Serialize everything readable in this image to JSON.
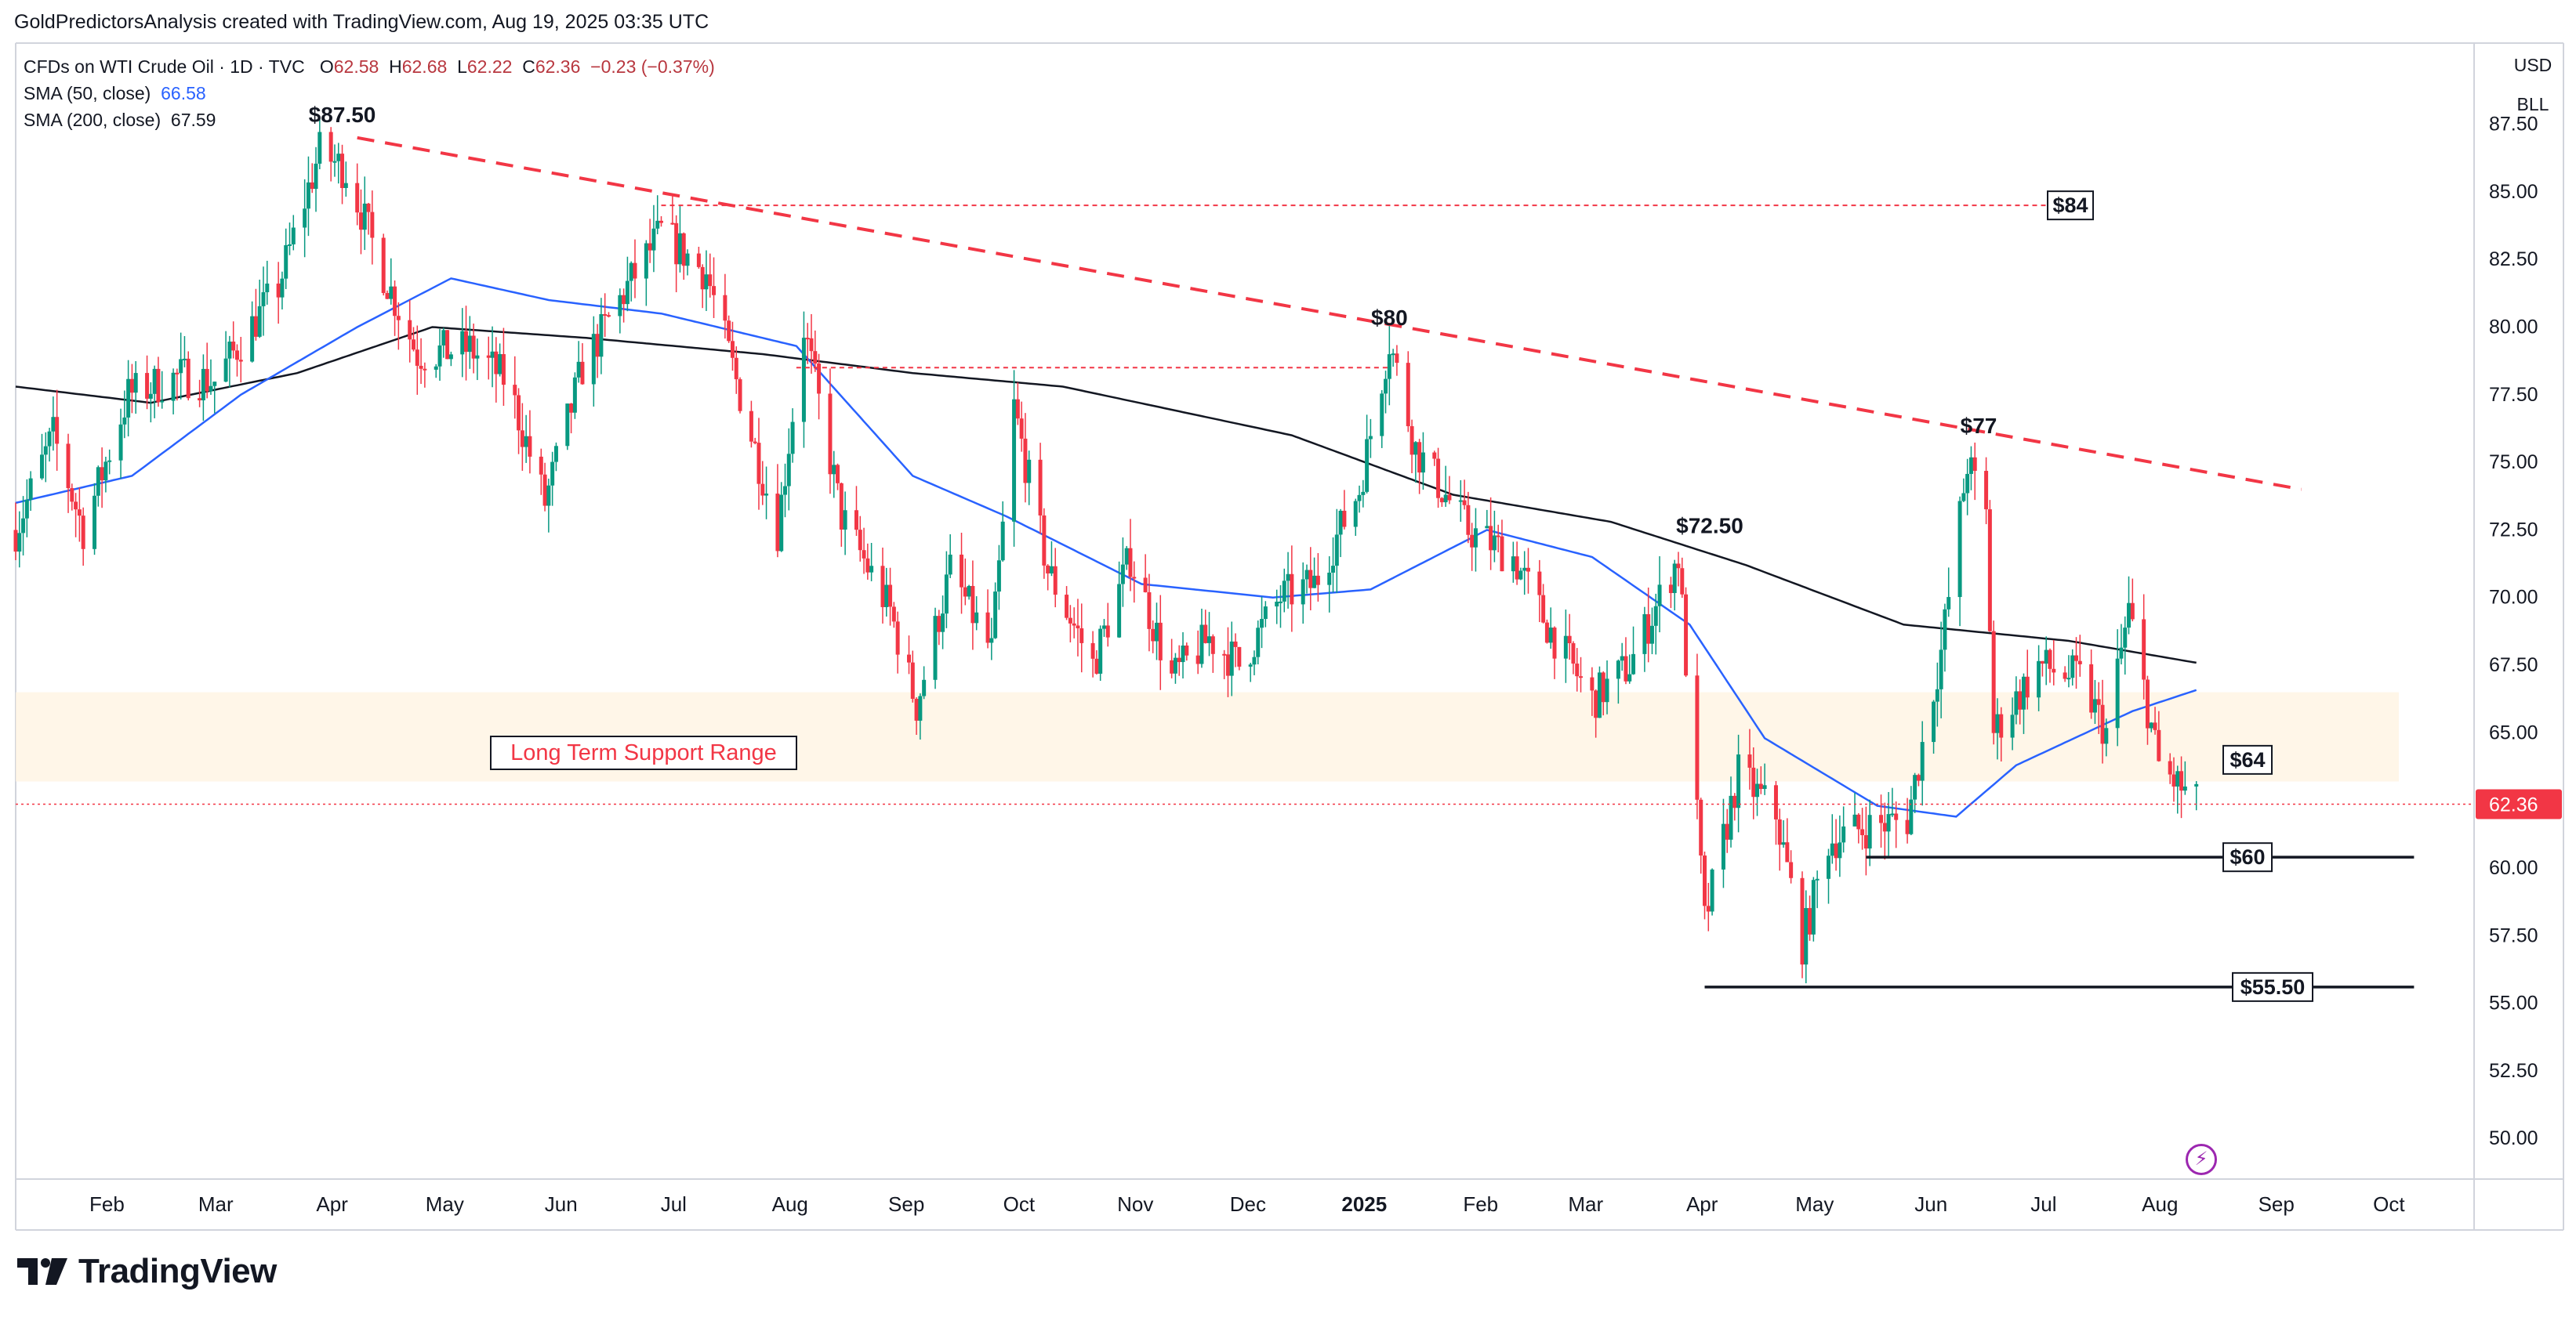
{
  "credit": "GoldPredictorsAnalysis created with TradingView.com, Aug 19, 2025 03:35 UTC",
  "legend": {
    "symbol": "CFDs on WTI Crude Oil · 1D · TVC",
    "o_label": "O",
    "o": "62.58",
    "h_label": "H",
    "h": "62.68",
    "l_label": "L",
    "l": "62.22",
    "c_label": "C",
    "c": "62.36",
    "change": "−0.23 (−0.37%)",
    "sma50_label": "SMA (50, close)",
    "sma50_value": "66.58",
    "sma200_label": "SMA (200, close)",
    "sma200_value": "67.59"
  },
  "currency": "USD",
  "unit": "BLL",
  "brand": "TradingView",
  "colors": {
    "up": "#089981",
    "down": "#f23645",
    "sma50": "#2962ff",
    "sma200": "#131722",
    "trend": "#f23645",
    "price_tag": "#f23645",
    "support_band": "#fff3e0"
  },
  "chart_data": {
    "type": "candlestick",
    "instrument": "CFDs on WTI Crude Oil",
    "interval": "1D",
    "y_ticks": [
      "87.50",
      "85.00",
      "82.50",
      "80.00",
      "77.50",
      "75.00",
      "72.50",
      "70.00",
      "67.50",
      "65.00",
      "62.50",
      "60.00",
      "57.50",
      "55.00",
      "52.50",
      "50.00"
    ],
    "ylim": [
      48.5,
      90.5
    ],
    "x_ticks": [
      "Feb",
      "Mar",
      "Apr",
      "May",
      "Jun",
      "Jul",
      "Aug",
      "Sep",
      "Oct",
      "Nov",
      "Dec",
      "2025",
      "Feb",
      "Mar",
      "Apr",
      "May",
      "Jun",
      "Jul",
      "Aug",
      "Sep",
      "Oct"
    ],
    "x_range": [
      "2024-01-15",
      "2025-10-31"
    ],
    "last_price": "62.36",
    "sma50_last": 66.58,
    "sma200_last": 67.59,
    "support_range": {
      "label": "Long Term Support Range",
      "low": 63.2,
      "high": 66.5
    },
    "price_path": [
      [
        "2024-01-15",
        72.5
      ],
      [
        "2024-01-25",
        76.0
      ],
      [
        "2024-02-02",
        72.5
      ],
      [
        "2024-02-14",
        77.5
      ],
      [
        "2024-02-28",
        78.2
      ],
      [
        "2024-03-08",
        78.0
      ],
      [
        "2024-03-25",
        81.5
      ],
      [
        "2024-04-05",
        86.5
      ],
      [
        "2024-04-12",
        85.8
      ],
      [
        "2024-04-22",
        82.0
      ],
      [
        "2024-05-01",
        79.0
      ],
      [
        "2024-05-15",
        79.2
      ],
      [
        "2024-05-25",
        78.0
      ],
      [
        "2024-06-04",
        73.5
      ],
      [
        "2024-06-14",
        78.5
      ],
      [
        "2024-06-26",
        81.5
      ],
      [
        "2024-07-05",
        83.5
      ],
      [
        "2024-07-17",
        82.0
      ],
      [
        "2024-07-26",
        77.5
      ],
      [
        "2024-08-05",
        72.5
      ],
      [
        "2024-08-12",
        80.0
      ],
      [
        "2024-08-22",
        73.0
      ],
      [
        "2024-09-04",
        69.5
      ],
      [
        "2024-09-11",
        66.0
      ],
      [
        "2024-09-20",
        71.0
      ],
      [
        "2024-10-01",
        68.0
      ],
      [
        "2024-10-07",
        77.0
      ],
      [
        "2024-10-16",
        71.0
      ],
      [
        "2024-10-28",
        67.5
      ],
      [
        "2024-11-07",
        71.5
      ],
      [
        "2024-11-18",
        67.0
      ],
      [
        "2024-11-28",
        68.5
      ],
      [
        "2024-12-06",
        67.5
      ],
      [
        "2024-12-17",
        70.0
      ],
      [
        "2024-12-26",
        70.5
      ],
      [
        "2025-01-07",
        74.0
      ],
      [
        "2025-01-15",
        79.5
      ],
      [
        "2025-01-22",
        75.5
      ],
      [
        "2025-02-05",
        72.5
      ],
      [
        "2025-02-17",
        71.5
      ],
      [
        "2025-02-26",
        69.0
      ],
      [
        "2025-03-10",
        66.2
      ],
      [
        "2025-03-20",
        67.5
      ],
      [
        "2025-04-02",
        71.5
      ],
      [
        "2025-04-09",
        58.0
      ],
      [
        "2025-04-18",
        63.5
      ],
      [
        "2025-04-28",
        62.0
      ],
      [
        "2025-05-05",
        57.2
      ],
      [
        "2025-05-12",
        61.0
      ],
      [
        "2025-05-22",
        61.5
      ],
      [
        "2025-06-02",
        61.8
      ],
      [
        "2025-06-11",
        68.0
      ],
      [
        "2025-06-18",
        75.0
      ],
      [
        "2025-06-23",
        73.0
      ],
      [
        "2025-06-25",
        65.0
      ],
      [
        "2025-07-07",
        67.5
      ],
      [
        "2025-07-18",
        67.0
      ],
      [
        "2025-07-25",
        65.0
      ],
      [
        "2025-07-31",
        69.5
      ],
      [
        "2025-08-08",
        63.8
      ],
      [
        "2025-08-18",
        62.36
      ]
    ],
    "sma200_path": [
      [
        "2024-01-15",
        77.8
      ],
      [
        "2024-02-20",
        77.2
      ],
      [
        "2024-03-30",
        78.3
      ],
      [
        "2024-05-05",
        80.0
      ],
      [
        "2024-06-15",
        79.6
      ],
      [
        "2024-08-01",
        79.0
      ],
      [
        "2024-09-10",
        78.3
      ],
      [
        "2024-10-20",
        77.8
      ],
      [
        "2024-12-20",
        76.0
      ],
      [
        "2025-02-01",
        73.8
      ],
      [
        "2025-03-15",
        72.8
      ],
      [
        "2025-04-20",
        71.2
      ],
      [
        "2025-06-01",
        69.0
      ],
      [
        "2025-07-15",
        68.4
      ],
      [
        "2025-08-18",
        67.59
      ]
    ],
    "sma50_path": [
      [
        "2024-01-15",
        73.5
      ],
      [
        "2024-02-15",
        74.5
      ],
      [
        "2024-03-15",
        77.5
      ],
      [
        "2024-04-15",
        80.0
      ],
      [
        "2024-05-10",
        81.8
      ],
      [
        "2024-06-05",
        81.0
      ],
      [
        "2024-07-05",
        80.5
      ],
      [
        "2024-08-10",
        79.3
      ],
      [
        "2024-09-10",
        74.5
      ],
      [
        "2024-10-05",
        73.0
      ],
      [
        "2024-11-10",
        70.5
      ],
      [
        "2024-12-15",
        70.0
      ],
      [
        "2025-01-10",
        70.3
      ],
      [
        "2025-02-10",
        72.5
      ],
      [
        "2025-03-10",
        71.5
      ],
      [
        "2025-04-05",
        69.0
      ],
      [
        "2025-04-25",
        64.8
      ],
      [
        "2025-05-25",
        62.3
      ],
      [
        "2025-06-15",
        61.9
      ],
      [
        "2025-07-01",
        63.8
      ],
      [
        "2025-08-01",
        65.8
      ],
      [
        "2025-08-18",
        66.58
      ]
    ],
    "annotations": {
      "peak_1": {
        "label": "$87.50",
        "date": "2024-04-11",
        "value": 87.0
      },
      "peak_2": {
        "label": "$80",
        "date": "2025-01-15",
        "value": 79.5
      },
      "peak_3": {
        "label": "$72.50",
        "date": "2025-04-02",
        "value": 71.8
      },
      "peak_4": {
        "label": "$77",
        "date": "2025-06-21",
        "value": 75.5
      },
      "level_84": {
        "label": "$84",
        "value": 84.5,
        "from": "2024-07-05",
        "to": "2025-07-15"
      },
      "level_64": {
        "label": "$64",
        "value": 64.0
      },
      "level_60": {
        "label": "$60",
        "value": 60.4,
        "from": "2025-05-22",
        "to": "2025-10-15"
      },
      "level_55_50": {
        "label": "$55.50",
        "value": 55.6,
        "from": "2025-04-09",
        "to": "2025-10-15"
      },
      "resistance_78": {
        "value": 78.5,
        "from": "2024-08-10",
        "to": "2024-10-07"
      },
      "resistance_80": {
        "value": 78.5,
        "from": "2024-10-07",
        "to": "2025-01-15"
      },
      "downtrend": {
        "from": [
          "2024-04-15",
          87.0
        ],
        "to": [
          "2025-09-15",
          74.0
        ]
      }
    }
  }
}
